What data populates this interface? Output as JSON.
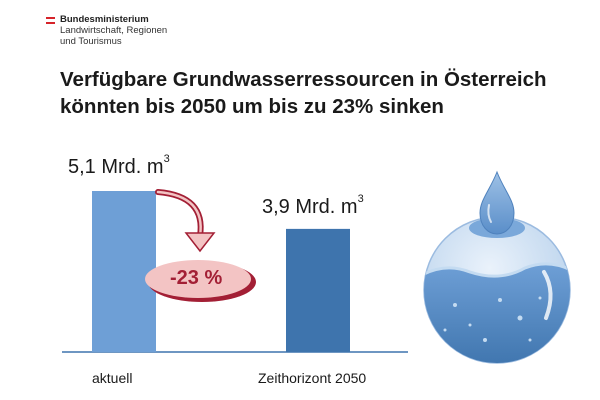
{
  "logo": {
    "line1": "Bundesministerium",
    "line2": "Landwirtschaft, Regionen",
    "line3": "und Tourismus"
  },
  "title": {
    "line1": "Verfügbare Grundwasserressourcen in Österreich",
    "line2": "könnten bis 2050 um bis zu 23% sinken"
  },
  "chart_data": {
    "type": "bar",
    "categories": [
      "aktuell",
      "Zeithorizont 2050"
    ],
    "values": [
      5.1,
      3.9
    ],
    "value_labels": [
      "5,1 Mrd. m",
      "3,9 Mrd. m"
    ],
    "unit_superscript": "3",
    "ylim": [
      0,
      5.1
    ],
    "change_label": "-23 %",
    "colors": {
      "aktuell": "#6e9fd6",
      "2050": "#3e74ad",
      "arrow": "#a31f35",
      "badge": "#f3c4c4"
    }
  },
  "icon": "water-drop-globe-icon"
}
